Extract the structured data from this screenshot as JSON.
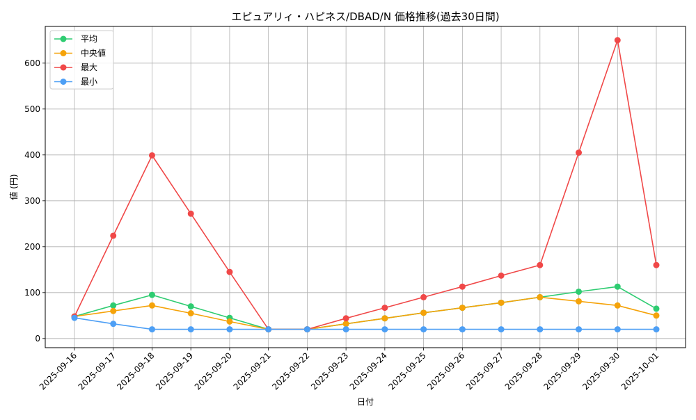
{
  "chart_data": {
    "type": "line",
    "title": "エピュアリィ・ハピネス/DBAD/N 価格推移(過去30日間)",
    "xlabel": "日付",
    "ylabel": "値 (円)",
    "categories": [
      "2025-09-16",
      "2025-09-17",
      "2025-09-18",
      "2025-09-19",
      "2025-09-20",
      "2025-09-21",
      "2025-09-22",
      "2025-09-23",
      "2025-09-24",
      "2025-09-25",
      "2025-09-26",
      "2025-09-27",
      "2025-09-28",
      "2025-09-29",
      "2025-09-30",
      "2025-10-01"
    ],
    "ylim": [
      -20,
      680
    ],
    "yticks": [
      0,
      100,
      200,
      300,
      400,
      500,
      600
    ],
    "grid": true,
    "legend_position": "top-left",
    "series": [
      {
        "name": "平均",
        "color": "#2ecc71",
        "values": [
          48,
          72,
          95,
          70,
          45,
          20,
          20,
          32,
          44,
          56,
          67,
          78,
          90,
          102,
          113,
          65
        ]
      },
      {
        "name": "中央値",
        "color": "#f5a30a",
        "values": [
          48,
          60,
          72,
          55,
          37,
          20,
          20,
          32,
          44,
          56,
          67,
          78,
          90,
          81,
          72,
          50
        ]
      },
      {
        "name": "最大",
        "color": "#f04848",
        "values": [
          48,
          224,
          399,
          272,
          145,
          20,
          20,
          44,
          67,
          90,
          113,
          137,
          160,
          405,
          650,
          160
        ]
      },
      {
        "name": "最小",
        "color": "#4d9ff5",
        "values": [
          45,
          32,
          20,
          20,
          20,
          20,
          20,
          20,
          20,
          20,
          20,
          20,
          20,
          20,
          20,
          20
        ]
      }
    ]
  }
}
